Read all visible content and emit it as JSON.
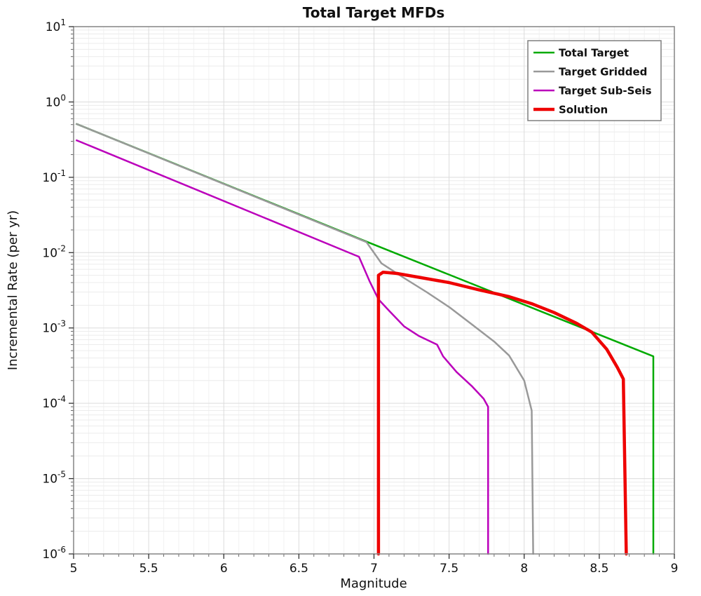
{
  "chart_data": {
    "type": "line",
    "title": "Total Target MFDs",
    "xlabel": "Magnitude",
    "ylabel": "Incremental Rate (per yr)",
    "xlim": [
      5,
      9
    ],
    "y_scale": "log",
    "y_exponent_max": 1,
    "y_exponent_min": -6,
    "x_ticks": [
      5,
      5.5,
      6,
      6.5,
      7,
      7.5,
      8,
      8.5,
      9
    ],
    "x_tick_labels": [
      "5",
      "5.5",
      "6",
      "6.5",
      "7",
      "7.5",
      "8",
      "8.5",
      "9"
    ],
    "y_tick_exponents": [
      1,
      0,
      -1,
      -2,
      -3,
      -4,
      -5,
      -6
    ],
    "grid": true,
    "legend_position": "upper right",
    "series": [
      {
        "name": "Total Target",
        "color": "#00aa00",
        "width": 2.5,
        "points": [
          [
            5.02,
            0.51
          ],
          [
            6.97,
            0.0135
          ],
          [
            8.86,
            0.00042
          ],
          [
            8.86,
            1e-06
          ]
        ]
      },
      {
        "name": "Target Gridded",
        "color": "#999999",
        "width": 2.5,
        "points": [
          [
            5.02,
            0.51
          ],
          [
            6.95,
            0.0138
          ],
          [
            7.05,
            0.0072
          ],
          [
            7.2,
            0.0046
          ],
          [
            7.35,
            0.003
          ],
          [
            7.5,
            0.0019
          ],
          [
            7.65,
            0.00112
          ],
          [
            7.8,
            0.00066
          ],
          [
            7.9,
            0.00043
          ],
          [
            8.0,
            0.0002
          ],
          [
            8.05,
            8e-05
          ],
          [
            8.06,
            1e-06
          ]
        ]
      },
      {
        "name": "Target Sub-Seis",
        "color": "#bb00bb",
        "width": 2.5,
        "points": [
          [
            5.02,
            0.31
          ],
          [
            6.9,
            0.0088
          ],
          [
            6.97,
            0.0042
          ],
          [
            7.03,
            0.0024
          ],
          [
            7.1,
            0.0017
          ],
          [
            7.2,
            0.00105
          ],
          [
            7.3,
            0.00078
          ],
          [
            7.42,
            0.0006
          ],
          [
            7.46,
            0.00042
          ],
          [
            7.55,
            0.00026
          ],
          [
            7.65,
            0.00017
          ],
          [
            7.73,
            0.000115
          ],
          [
            7.76,
            9e-05
          ],
          [
            7.76,
            1e-06
          ]
        ]
      },
      {
        "name": "Solution",
        "color": "#ee0000",
        "width": 4.5,
        "points": [
          [
            7.03,
            1e-06
          ],
          [
            7.03,
            0.005
          ],
          [
            7.06,
            0.0055
          ],
          [
            7.15,
            0.0053
          ],
          [
            7.3,
            0.0047
          ],
          [
            7.5,
            0.004
          ],
          [
            7.7,
            0.0032
          ],
          [
            7.9,
            0.0026
          ],
          [
            8.05,
            0.0021
          ],
          [
            8.2,
            0.0016
          ],
          [
            8.35,
            0.00115
          ],
          [
            8.45,
            0.00088
          ],
          [
            8.55,
            0.00052
          ],
          [
            8.62,
            0.0003
          ],
          [
            8.66,
            0.00021
          ],
          [
            8.68,
            1e-06
          ]
        ]
      }
    ]
  }
}
